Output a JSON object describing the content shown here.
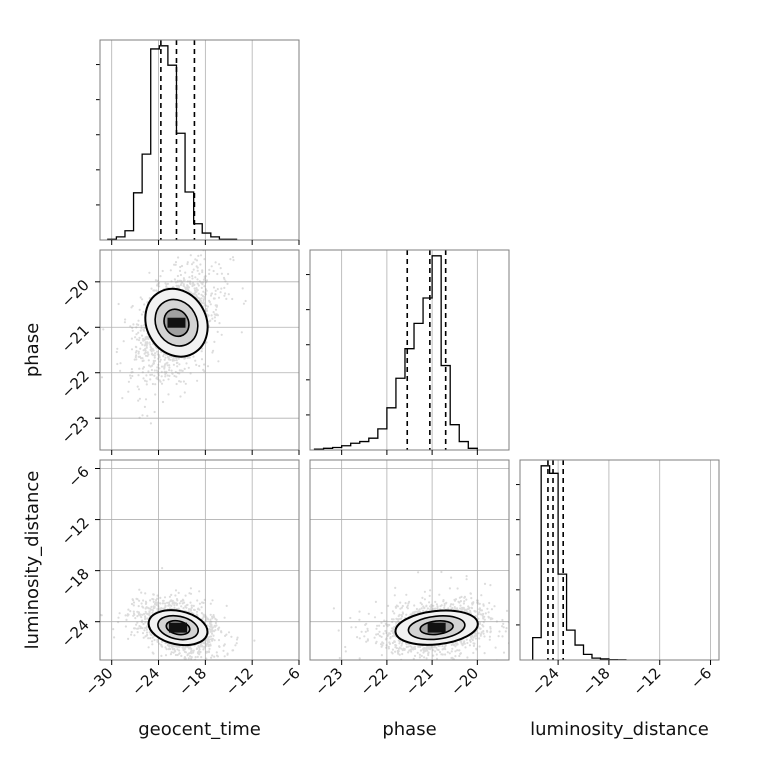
{
  "chart_data": {
    "type": "corner",
    "parameters": [
      "geocent_time",
      "phase",
      "luminosity_distance"
    ],
    "axes": {
      "geocent_time": {
        "range": [
          -31.5,
          -6
        ],
        "ticks": [
          -30,
          -24,
          -18,
          -12,
          -6
        ]
      },
      "phase": {
        "range": [
          -23.7,
          -19.3
        ],
        "ticks": [
          -23,
          -22,
          -21,
          -20
        ]
      },
      "luminosity_distance": {
        "range": [
          -28.5,
          -5
        ],
        "ticks": [
          -24,
          -18,
          -12,
          -6
        ]
      }
    },
    "histograms": [
      {
        "parameter": "geocent_time",
        "edges": [
          -30.5,
          -29.4,
          -28.3,
          -27.2,
          -26.1,
          -25.0,
          -23.9,
          -22.8,
          -21.7,
          -20.6,
          -19.5,
          -18.4,
          -17.3,
          -16.2,
          -15.1,
          -14.0
        ],
        "counts": [
          1,
          4,
          12,
          61,
          111,
          247,
          251,
          226,
          138,
          62,
          21,
          9,
          4,
          1,
          1
        ],
        "quantiles": [
          -23.7,
          -21.7,
          -19.4
        ]
      },
      {
        "parameter": "phase",
        "edges": [
          -23.6,
          -23.4,
          -23.2,
          -23.0,
          -22.8,
          -22.6,
          -22.4,
          -22.2,
          -22.0,
          -21.8,
          -21.6,
          -21.4,
          -21.2,
          -21.0,
          -20.8,
          -20.6,
          -20.4,
          -20.2,
          -20.0
        ],
        "counts": [
          1,
          2,
          3,
          5,
          8,
          10,
          14,
          25,
          50,
          85,
          120,
          150,
          180,
          230,
          100,
          30,
          10,
          2
        ],
        "quantiles": [
          -21.55,
          -21.05,
          -20.7
        ]
      },
      {
        "parameter": "luminosity_distance",
        "edges": [
          -27.0,
          -26.0,
          -25.0,
          -24.0,
          -23.0,
          -22.0,
          -21.0,
          -20.0,
          -19.0,
          -18.0,
          -17.0,
          -16.0
        ],
        "counts": [
          6,
          52,
          50,
          23,
          8,
          4,
          1.5,
          0.5,
          0.3,
          0.1,
          0.05
        ],
        "quantiles": [
          -25.2,
          -24.6,
          -23.4
        ]
      }
    ],
    "pairs": [
      {
        "x": "geocent_time",
        "y": "phase",
        "peak": [
          -21.7,
          -20.9
        ],
        "spread": [
          2.3,
          0.55
        ],
        "correlation": 0.45
      },
      {
        "x": "geocent_time",
        "y": "luminosity_distance",
        "peak": [
          -21.5,
          -24.7
        ],
        "spread": [
          2.3,
          1.4
        ],
        "correlation": -0.35
      },
      {
        "x": "phase",
        "y": "luminosity_distance",
        "peak": [
          -20.9,
          -24.7
        ],
        "spread": [
          0.55,
          1.4
        ],
        "correlation": 0.25
      }
    ],
    "grid": true,
    "legend": "none"
  }
}
